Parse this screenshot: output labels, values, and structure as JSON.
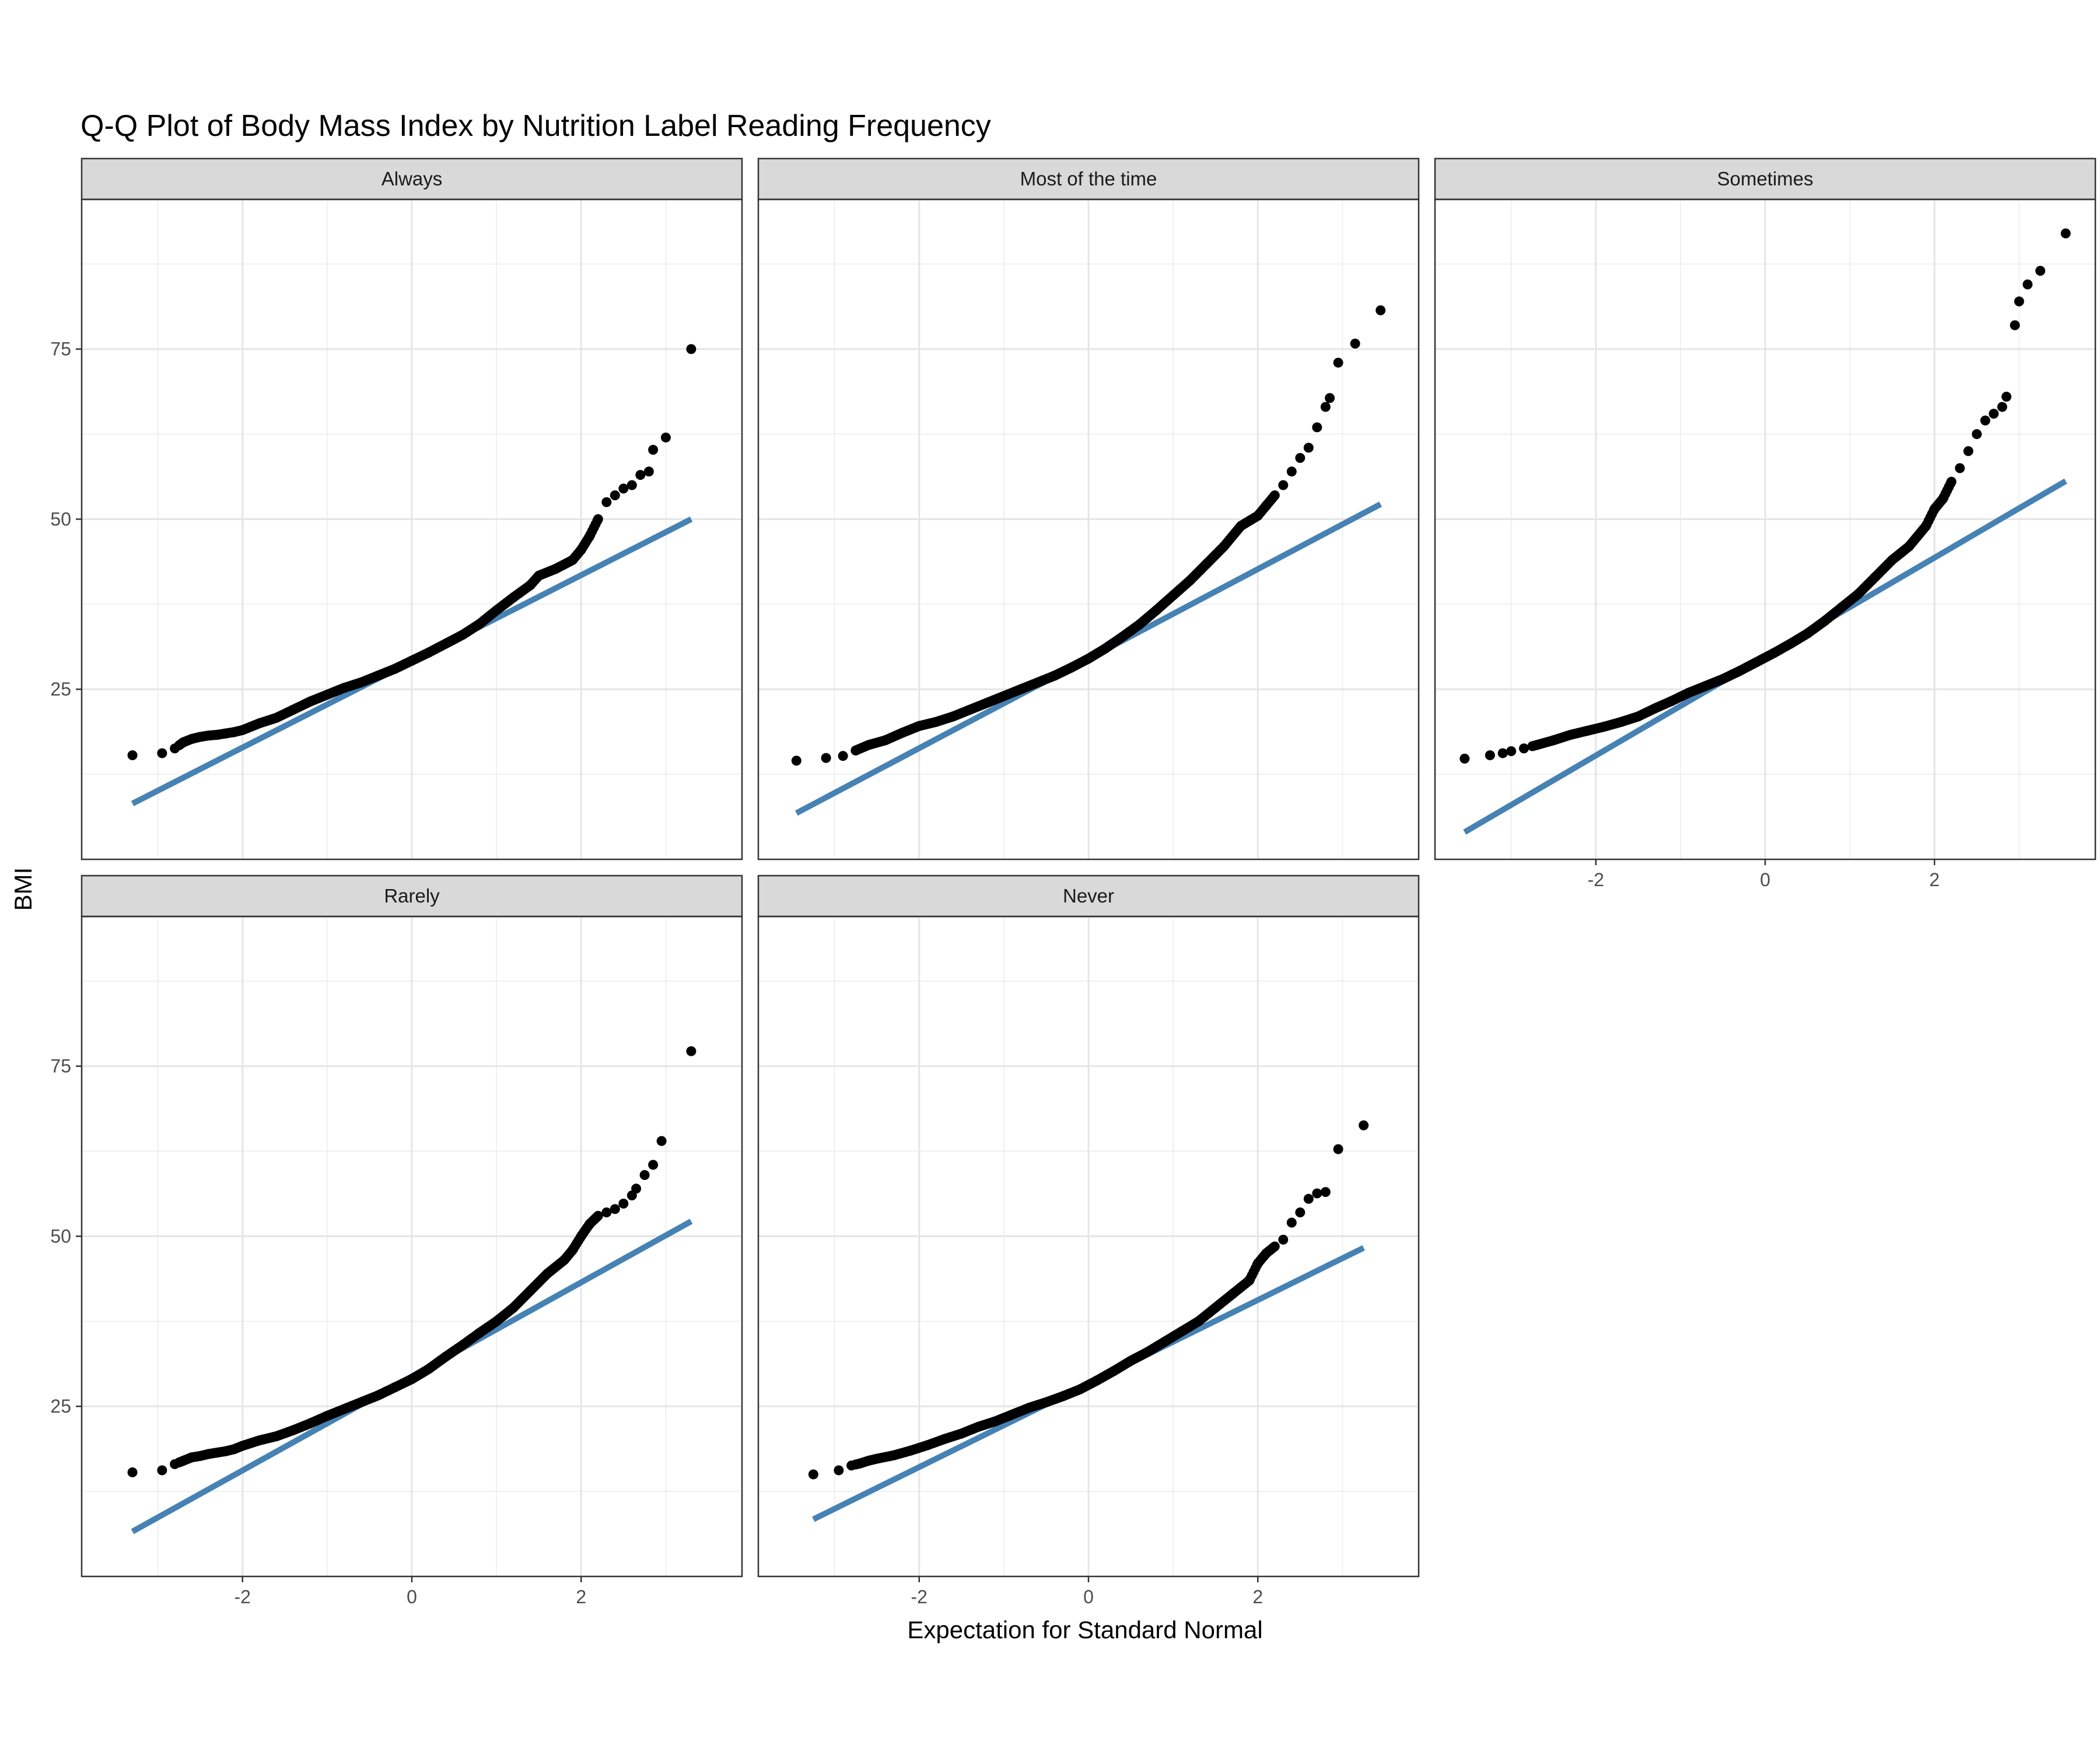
{
  "chart_data": {
    "type": "scatter",
    "title": "Q-Q Plot of Body Mass Index by Nutrition Label Reading Frequency",
    "xlabel": "Expectation for Standard Normal",
    "ylabel": "BMI",
    "xlim": [
      -3.9,
      3.9
    ],
    "ylim": [
      0,
      97
    ],
    "x_ticks": [
      -2,
      0,
      2
    ],
    "y_ticks": [
      25,
      50,
      75
    ],
    "grid": true,
    "point_color": "#000000",
    "line_color": "#4682b4",
    "strip_fill": "#d9d9d9",
    "panels": [
      {
        "name": "Always",
        "line": {
          "x": [
            -3.3,
            3.3
          ],
          "y": [
            8.2,
            50.0
          ]
        },
        "points": {
          "x": [
            -3.3,
            -2.95,
            -2.8,
            -2.7,
            -2.6,
            -2.5,
            -2.4,
            -2.3,
            -2.2,
            -2.1,
            -2.0,
            -1.9,
            -1.8,
            -1.6,
            -1.4,
            -1.2,
            -1.0,
            -0.8,
            -0.6,
            -0.4,
            -0.2,
            0.0,
            0.2,
            0.4,
            0.6,
            0.8,
            1.0,
            1.2,
            1.4,
            1.5,
            1.7,
            1.9,
            2.0,
            2.1,
            2.2,
            2.3,
            2.4,
            2.5,
            2.6,
            2.7,
            2.8,
            2.85,
            3.0,
            3.3
          ],
          "y": [
            15.3,
            15.6,
            16.3,
            17.2,
            17.7,
            18.0,
            18.2,
            18.3,
            18.5,
            18.7,
            19.0,
            19.5,
            20.0,
            20.8,
            22.0,
            23.2,
            24.2,
            25.2,
            26.0,
            27.0,
            28.0,
            29.2,
            30.4,
            31.7,
            33.0,
            34.6,
            36.6,
            38.5,
            40.3,
            41.7,
            42.7,
            44.0,
            45.5,
            47.5,
            50.0,
            52.5,
            53.5,
            54.5,
            55.0,
            56.5,
            57.0,
            60.2,
            62.0,
            75.0
          ]
        }
      },
      {
        "name": "Most of the time",
        "line": {
          "x": [
            -3.45,
            3.45
          ],
          "y": [
            6.8,
            52.2
          ]
        },
        "points": {
          "x": [
            -3.45,
            -3.1,
            -2.9,
            -2.75,
            -2.6,
            -2.4,
            -2.2,
            -2.0,
            -1.8,
            -1.6,
            -1.4,
            -1.2,
            -1.0,
            -0.8,
            -0.6,
            -0.4,
            -0.2,
            0.0,
            0.2,
            0.4,
            0.6,
            0.8,
            1.0,
            1.2,
            1.4,
            1.6,
            1.8,
            2.0,
            2.1,
            2.2,
            2.3,
            2.4,
            2.5,
            2.6,
            2.7,
            2.8,
            2.85,
            2.95,
            3.15,
            3.45
          ],
          "y": [
            14.5,
            14.9,
            15.2,
            16.0,
            16.8,
            17.5,
            18.6,
            19.6,
            20.2,
            21.0,
            22.0,
            23.0,
            24.0,
            25.0,
            26.0,
            27.0,
            28.2,
            29.5,
            31.0,
            32.7,
            34.5,
            36.6,
            38.8,
            41.0,
            43.5,
            46.0,
            49.0,
            50.5,
            52.0,
            53.5,
            55.0,
            57.0,
            59.0,
            60.5,
            63.5,
            66.5,
            67.8,
            73.0,
            75.8,
            80.7
          ]
        }
      },
      {
        "name": "Sometimes",
        "line": {
          "x": [
            -3.55,
            3.55
          ],
          "y": [
            4.0,
            55.6
          ]
        },
        "points": {
          "x": [
            -3.55,
            -3.25,
            -3.1,
            -3.0,
            -2.85,
            -2.7,
            -2.5,
            -2.3,
            -2.1,
            -1.9,
            -1.7,
            -1.5,
            -1.3,
            -1.1,
            -0.9,
            -0.7,
            -0.5,
            -0.3,
            -0.1,
            0.1,
            0.3,
            0.5,
            0.7,
            0.9,
            1.1,
            1.3,
            1.5,
            1.7,
            1.9,
            2.0,
            2.1,
            2.2,
            2.3,
            2.4,
            2.5,
            2.6,
            2.7,
            2.8,
            2.85,
            2.95,
            3.0,
            3.1,
            3.25,
            3.55
          ],
          "y": [
            14.8,
            15.3,
            15.6,
            15.9,
            16.3,
            16.8,
            17.5,
            18.3,
            18.9,
            19.5,
            20.2,
            21.0,
            22.2,
            23.3,
            24.5,
            25.5,
            26.5,
            27.7,
            29.0,
            30.3,
            31.7,
            33.2,
            35.0,
            37.0,
            39.0,
            41.5,
            44.0,
            46.0,
            49.0,
            51.5,
            53.0,
            55.5,
            57.5,
            60.0,
            62.5,
            64.5,
            65.5,
            66.5,
            68.0,
            78.5,
            82.0,
            84.5,
            86.5,
            92.0
          ]
        }
      },
      {
        "name": "Rarely",
        "line": {
          "x": [
            -3.3,
            3.3
          ],
          "y": [
            6.6,
            52.2
          ]
        },
        "points": {
          "x": [
            -3.3,
            -2.95,
            -2.8,
            -2.7,
            -2.6,
            -2.5,
            -2.4,
            -2.3,
            -2.2,
            -2.1,
            -2.0,
            -1.9,
            -1.8,
            -1.6,
            -1.4,
            -1.2,
            -1.0,
            -0.8,
            -0.6,
            -0.4,
            -0.2,
            0.0,
            0.2,
            0.4,
            0.6,
            0.8,
            1.0,
            1.2,
            1.4,
            1.6,
            1.8,
            1.9,
            2.0,
            2.1,
            2.2,
            2.3,
            2.4,
            2.5,
            2.6,
            2.65,
            2.75,
            2.85,
            2.95,
            3.3
          ],
          "y": [
            15.3,
            15.6,
            16.5,
            17.0,
            17.5,
            17.7,
            18.0,
            18.2,
            18.4,
            18.7,
            19.2,
            19.6,
            20.0,
            20.6,
            21.5,
            22.5,
            23.6,
            24.6,
            25.6,
            26.6,
            27.8,
            29.0,
            30.5,
            32.3,
            34.0,
            35.8,
            37.5,
            39.5,
            42.0,
            44.5,
            46.5,
            48.0,
            50.0,
            51.8,
            53.0,
            53.5,
            54.0,
            54.8,
            56.0,
            57.0,
            59.0,
            60.5,
            64.0,
            77.2
          ]
        }
      },
      {
        "name": "Never",
        "line": {
          "x": [
            -3.25,
            3.25
          ],
          "y": [
            8.4,
            48.3
          ]
        },
        "points": {
          "x": [
            -3.25,
            -2.95,
            -2.8,
            -2.7,
            -2.6,
            -2.5,
            -2.3,
            -2.1,
            -1.9,
            -1.7,
            -1.5,
            -1.3,
            -1.1,
            -0.9,
            -0.7,
            -0.5,
            -0.3,
            -0.1,
            0.1,
            0.3,
            0.5,
            0.7,
            0.9,
            1.1,
            1.3,
            1.5,
            1.7,
            1.9,
            2.0,
            2.1,
            2.2,
            2.3,
            2.4,
            2.5,
            2.6,
            2.7,
            2.8,
            2.95,
            3.25
          ],
          "y": [
            15.0,
            15.6,
            16.3,
            16.6,
            17.0,
            17.3,
            17.8,
            18.5,
            19.3,
            20.2,
            21.0,
            22.0,
            22.8,
            23.8,
            24.8,
            25.6,
            26.5,
            27.5,
            28.8,
            30.2,
            31.7,
            33.0,
            34.5,
            36.0,
            37.5,
            39.5,
            41.5,
            43.5,
            46.0,
            47.5,
            48.5,
            49.5,
            52.0,
            53.5,
            55.5,
            56.3,
            56.5,
            62.8,
            66.3
          ]
        }
      }
    ]
  }
}
